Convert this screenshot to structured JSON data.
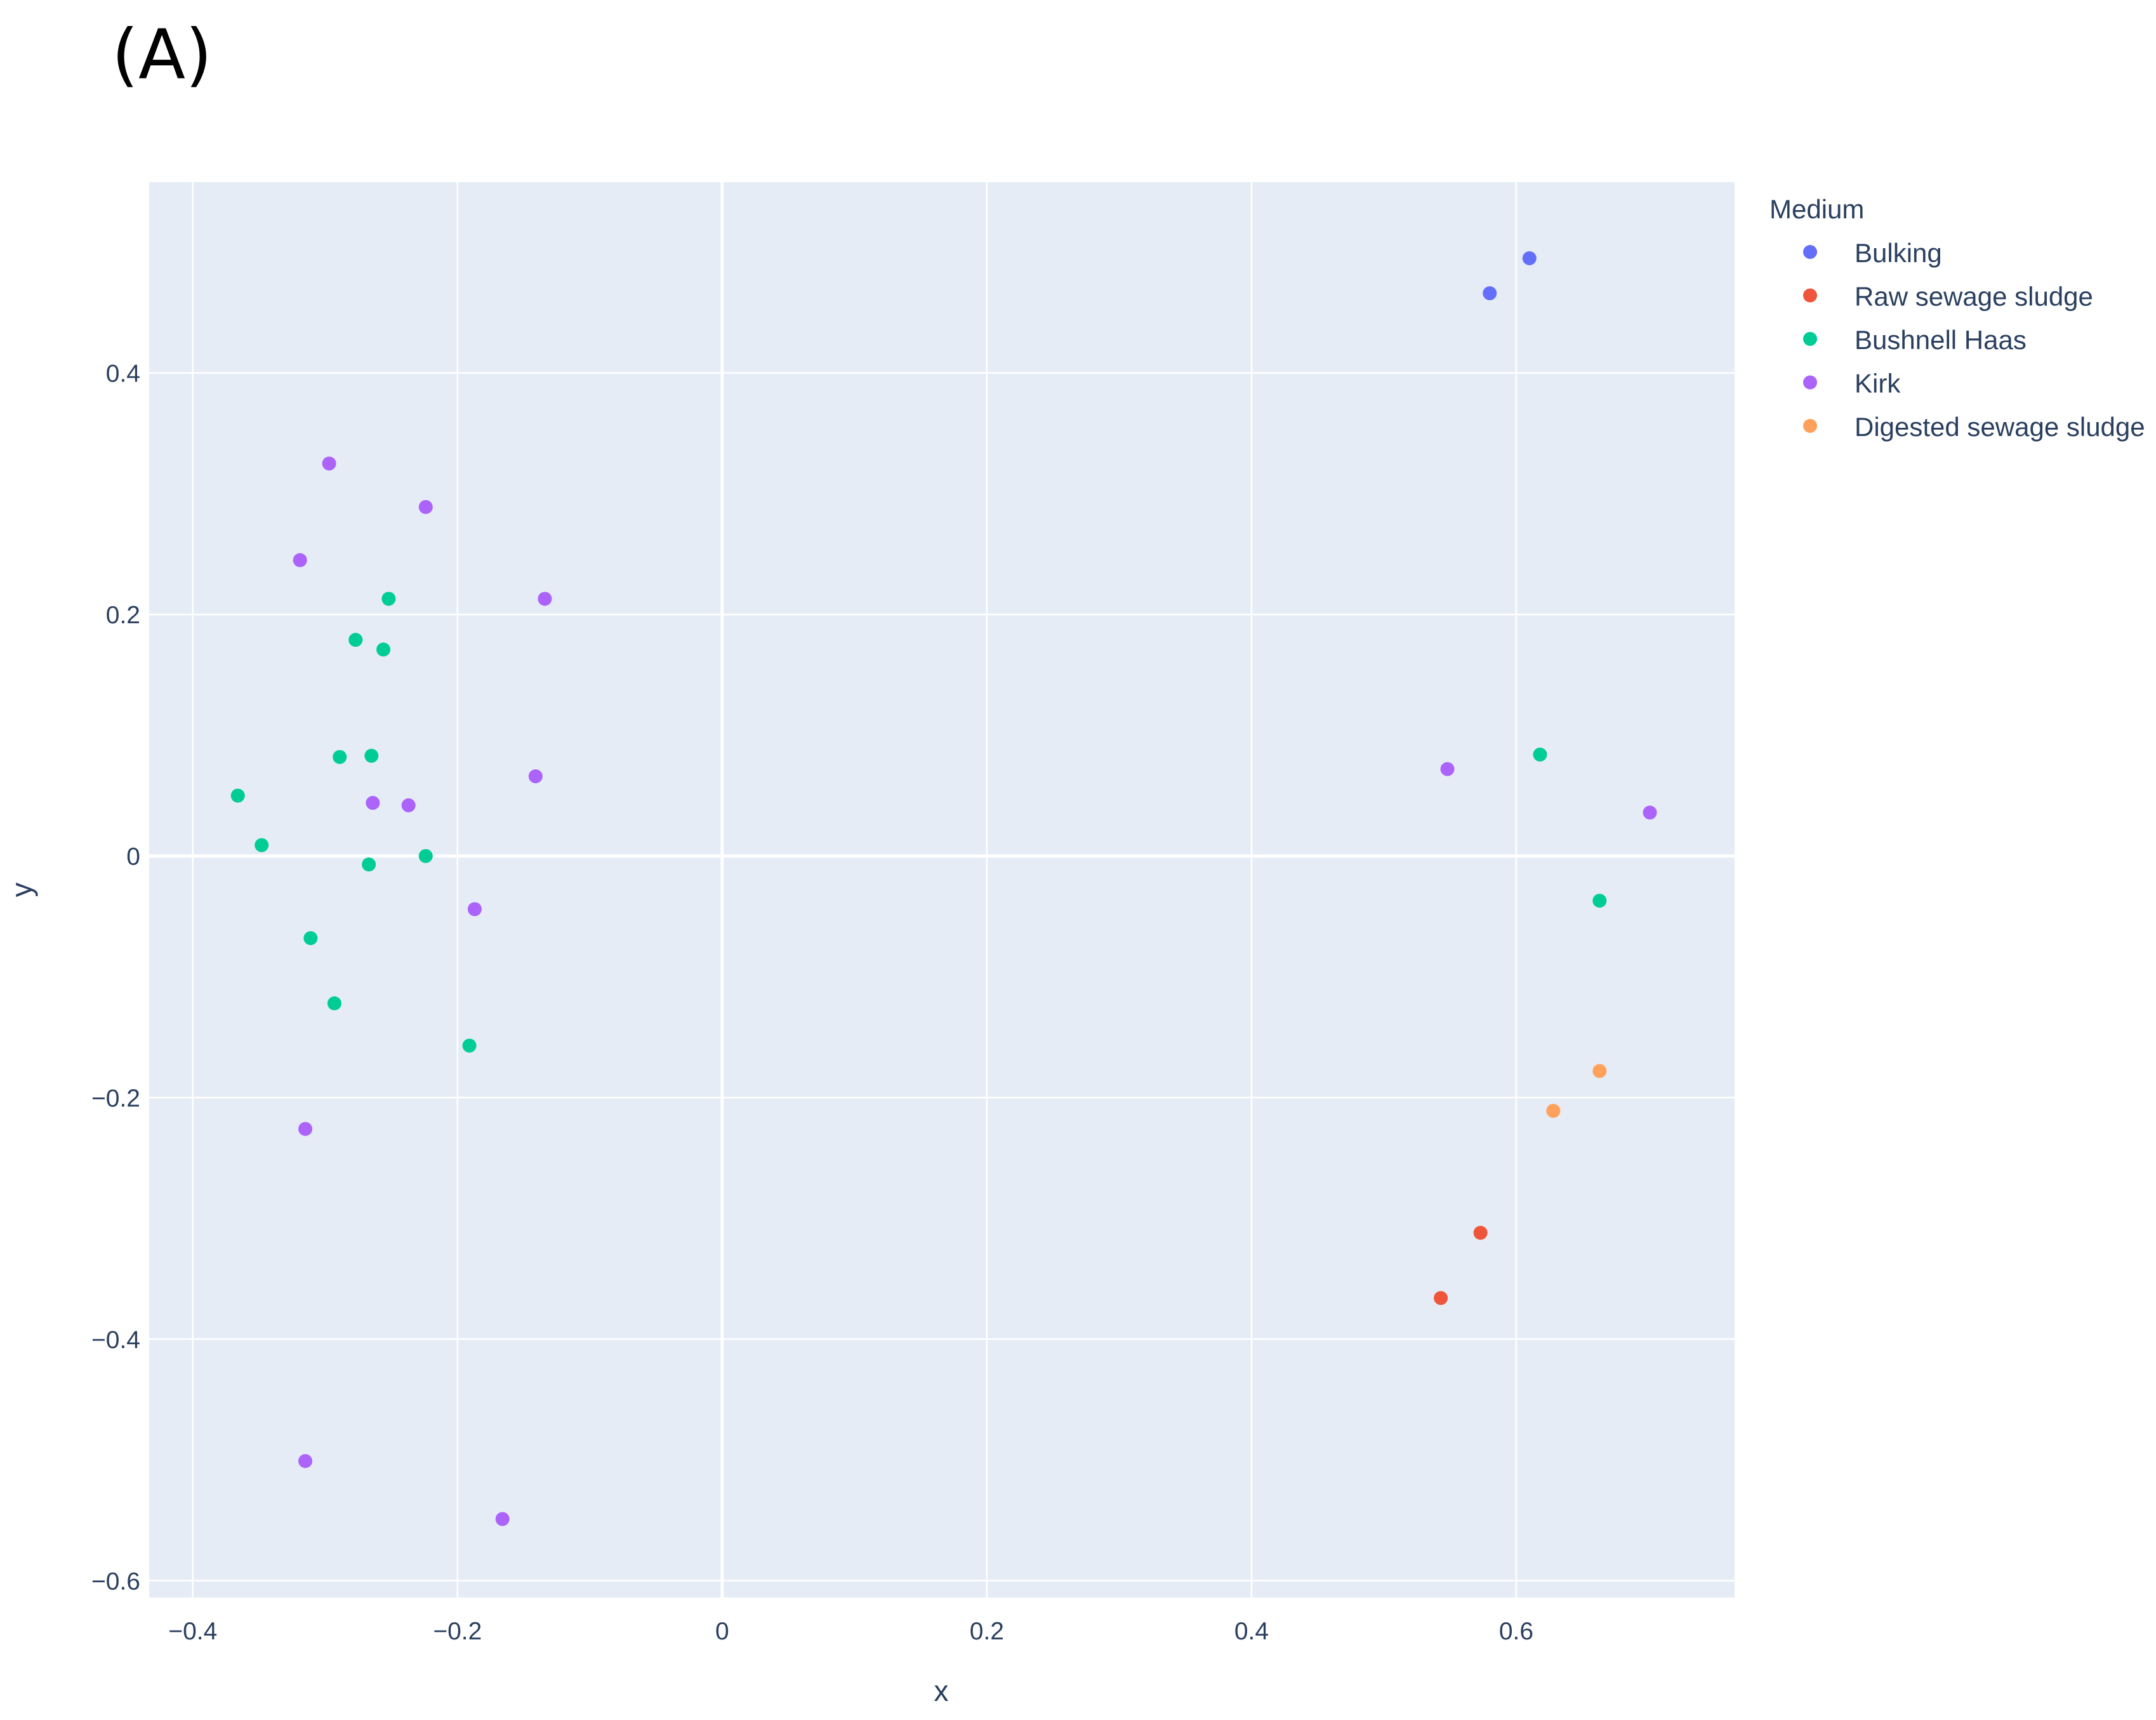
{
  "panel_label": "(A)",
  "chart_data": {
    "type": "scatter",
    "xlabel": "x",
    "ylabel": "y",
    "xlim": [
      -0.433,
      0.765
    ],
    "ylim": [
      -0.614,
      0.558
    ],
    "x_ticks": [
      {
        "value": -0.4,
        "label": "−0.4"
      },
      {
        "value": -0.2,
        "label": "−0.2"
      },
      {
        "value": 0,
        "label": "0"
      },
      {
        "value": 0.2,
        "label": "0.2"
      },
      {
        "value": 0.4,
        "label": "0.4"
      },
      {
        "value": 0.6,
        "label": "0.6"
      }
    ],
    "y_ticks": [
      {
        "value": -0.6,
        "label": "−0.6"
      },
      {
        "value": -0.4,
        "label": "−0.4"
      },
      {
        "value": -0.2,
        "label": "−0.2"
      },
      {
        "value": 0,
        "label": "0"
      },
      {
        "value": 0.2,
        "label": "0.2"
      },
      {
        "value": 0.4,
        "label": "0.4"
      }
    ],
    "grid": true,
    "legend_title": "Medium",
    "legend_position": "right",
    "plot_background": "#e5ecf6",
    "series": [
      {
        "name": "Bulking",
        "color": "#636efa",
        "points": [
          [
            0.58,
            0.466
          ],
          [
            0.61,
            0.495
          ]
        ]
      },
      {
        "name": "Raw sewage sludge",
        "color": "#ef553b",
        "points": [
          [
            0.543,
            -0.366
          ],
          [
            0.573,
            -0.312
          ]
        ]
      },
      {
        "name": "Bushnell Haas",
        "color": "#00cc96",
        "points": [
          [
            -0.366,
            0.05
          ],
          [
            -0.348,
            0.009
          ],
          [
            -0.311,
            -0.068
          ],
          [
            -0.293,
            -0.122
          ],
          [
            -0.289,
            0.082
          ],
          [
            -0.277,
            0.179
          ],
          [
            -0.267,
            -0.007
          ],
          [
            -0.265,
            0.083
          ],
          [
            -0.256,
            0.171
          ],
          [
            -0.252,
            0.213
          ],
          [
            -0.224,
            0.0
          ],
          [
            -0.191,
            -0.157
          ],
          [
            0.618,
            0.084
          ],
          [
            0.663,
            -0.037
          ]
        ]
      },
      {
        "name": "Kirk",
        "color": "#ab63fa",
        "points": [
          [
            -0.319,
            0.245
          ],
          [
            -0.297,
            0.325
          ],
          [
            -0.315,
            -0.226
          ],
          [
            -0.315,
            -0.501
          ],
          [
            -0.264,
            0.044
          ],
          [
            -0.237,
            0.042
          ],
          [
            -0.224,
            0.289
          ],
          [
            -0.187,
            -0.044
          ],
          [
            -0.166,
            -0.549
          ],
          [
            -0.141,
            0.066
          ],
          [
            -0.134,
            0.213
          ],
          [
            0.548,
            0.072
          ],
          [
            0.701,
            0.036
          ]
        ]
      },
      {
        "name": "Digested sewage sludge",
        "color": "#ffa15a",
        "points": [
          [
            0.628,
            -0.211
          ],
          [
            0.663,
            -0.178
          ]
        ]
      }
    ]
  }
}
